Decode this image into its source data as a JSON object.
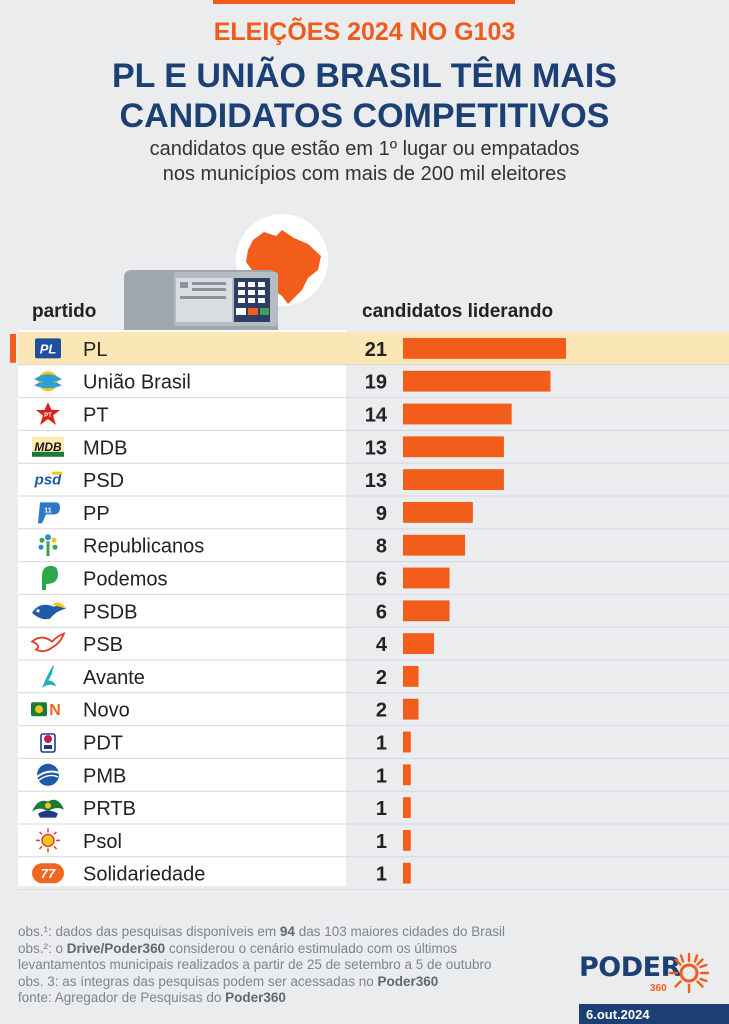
{
  "header": {
    "kicker": "ELEIÇÕES 2024 NO G103",
    "title_line1": "PL E UNIÃO BRASIL TÊM MAIS",
    "title_line2": "CANDIDATOS COMPETITIVOS",
    "subtitle_line1": "candidatos que estão em 1º lugar ou empatados",
    "subtitle_line2": "nos municípios com mais de 200 mil eleitores"
  },
  "columns": {
    "party": "partido",
    "value": "candidatos liderando"
  },
  "chart_data": {
    "type": "bar",
    "orientation": "horizontal",
    "title": "PL E UNIÃO BRASIL TÊM MAIS CANDIDATOS COMPETITIVOS",
    "subtitle": "candidatos que estão em 1º lugar ou empatados nos municípios com mais de 200 mil eleitores",
    "xlabel": "candidatos liderando",
    "ylabel": "partido",
    "categories": [
      "PL",
      "União Brasil",
      "PT",
      "MDB",
      "PSD",
      "PP",
      "Republicanos",
      "Podemos",
      "PSDB",
      "PSB",
      "Avante",
      "Novo",
      "PDT",
      "PMB",
      "PRTB",
      "Psol",
      "Solidariedade"
    ],
    "values": [
      21,
      19,
      14,
      13,
      13,
      9,
      8,
      6,
      6,
      4,
      2,
      2,
      1,
      1,
      1,
      1,
      1
    ],
    "highlight": "PL",
    "xlim": [
      0,
      21
    ]
  },
  "logos": [
    {
      "icon": "pl-logo-icon",
      "color": "#1f4ea0"
    },
    {
      "icon": "uniao-brasil-logo-icon",
      "color": "#2a9fd8"
    },
    {
      "icon": "pt-logo-icon",
      "color": "#d9201c"
    },
    {
      "icon": "mdb-logo-icon",
      "color": "#1a7a3a"
    },
    {
      "icon": "psd-logo-icon",
      "color": "#1f5aa6"
    },
    {
      "icon": "pp-logo-icon",
      "color": "#2f78c8"
    },
    {
      "icon": "republicanos-logo-icon",
      "color": "#2a8fc8"
    },
    {
      "icon": "podemos-logo-icon",
      "color": "#2aa84a"
    },
    {
      "icon": "psdb-logo-icon",
      "color": "#1f5aa6"
    },
    {
      "icon": "psb-logo-icon",
      "color": "#e23a2a"
    },
    {
      "icon": "avante-logo-icon",
      "color": "#1fb0b8"
    },
    {
      "icon": "novo-logo-icon",
      "color": "#f26522"
    },
    {
      "icon": "pdt-logo-icon",
      "color": "#1f3a8a"
    },
    {
      "icon": "pmb-logo-icon",
      "color": "#1f5aa6"
    },
    {
      "icon": "prtb-logo-icon",
      "color": "#1a7a3a"
    },
    {
      "icon": "psol-logo-icon",
      "color": "#f2a31c"
    },
    {
      "icon": "solidariedade-logo-icon",
      "color": "#f26522"
    }
  ],
  "notes": {
    "line1_a": "obs.¹: dados das pesquisas disponíveis em ",
    "line1_b": "94",
    "line1_c": " das 103 maiores cidades do Brasil",
    "line2_a": "obs.²: o ",
    "line2_b": "Drive/Poder360",
    "line2_c": " considerou o cenário estimulado com os últimos",
    "line3": "levantamentos municipais realizados a partir de 25 de setembro a 5 de outubro",
    "line4_a": "obs. 3: as íntegras das pesquisas podem ser acessadas no ",
    "line4_b": "Poder360",
    "line5_a": "fonte: Agregador de Pesquisas do ",
    "line5_b": "Poder360"
  },
  "brand": {
    "name": "PODER",
    "suffix": "360",
    "date": "6.out.2024"
  },
  "colors": {
    "bar": "#f25d1c",
    "highlight_row": "#fbe7b5",
    "accent": "#f25d1c",
    "navy": "#1c3f74"
  }
}
